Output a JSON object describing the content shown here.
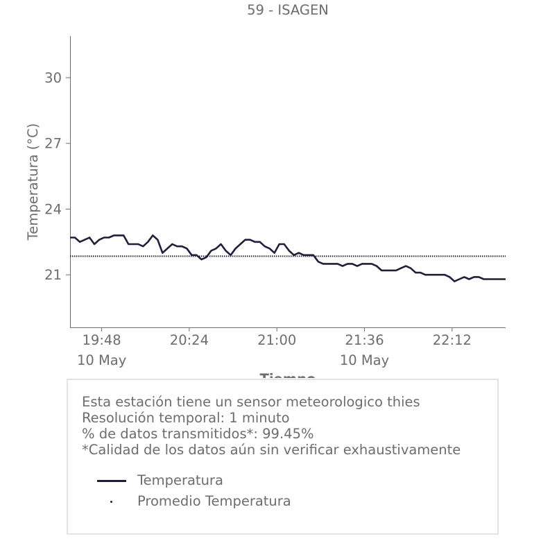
{
  "chart_data": {
    "type": "line",
    "title": "59 - ISAGEN",
    "xlabel": "Tiempo",
    "ylabel": "Temperatura (°C)",
    "x_start": "19:35",
    "x_end": "22:34",
    "x_ticks": [
      "19:48",
      "20:24",
      "21:00",
      "21:36",
      "22:12"
    ],
    "x_sublabels": [
      "10 May",
      "",
      "",
      "10 May",
      ""
    ],
    "y_ticks": [
      21,
      24,
      27,
      30
    ],
    "ylim": [
      18.6,
      31.9
    ],
    "grid": false,
    "series": [
      {
        "name": "Temperatura",
        "color": "#1d1f3d",
        "style": "solid",
        "x": [
          "19:35",
          "19:37",
          "19:39",
          "19:41",
          "19:43",
          "19:45",
          "19:47",
          "19:49",
          "19:51",
          "19:53",
          "19:55",
          "19:57",
          "19:59",
          "20:01",
          "20:03",
          "20:05",
          "20:07",
          "20:09",
          "20:11",
          "20:13",
          "20:15",
          "20:17",
          "20:19",
          "20:21",
          "20:23",
          "20:25",
          "20:27",
          "20:29",
          "20:31",
          "20:33",
          "20:35",
          "20:37",
          "20:39",
          "20:41",
          "20:43",
          "20:45",
          "20:47",
          "20:49",
          "20:51",
          "20:53",
          "20:55",
          "20:57",
          "20:59",
          "21:01",
          "21:03",
          "21:05",
          "21:07",
          "21:09",
          "21:11",
          "21:13",
          "21:15",
          "21:17",
          "21:19",
          "21:21",
          "21:23",
          "21:25",
          "21:27",
          "21:29",
          "21:31",
          "21:33",
          "21:35",
          "21:37",
          "21:39",
          "21:41",
          "21:43",
          "21:45",
          "21:47",
          "21:49",
          "21:51",
          "21:53",
          "21:55",
          "21:57",
          "21:59",
          "22:01",
          "22:03",
          "22:05",
          "22:07",
          "22:09",
          "22:11",
          "22:13",
          "22:15",
          "22:17",
          "22:19",
          "22:21",
          "22:23",
          "22:25",
          "22:27",
          "22:29",
          "22:31",
          "22:34"
        ],
        "values": [
          22.7,
          22.7,
          22.5,
          22.6,
          22.7,
          22.4,
          22.6,
          22.7,
          22.7,
          22.8,
          22.8,
          22.8,
          22.4,
          22.4,
          22.4,
          22.3,
          22.5,
          22.8,
          22.6,
          22.0,
          22.2,
          22.4,
          22.3,
          22.3,
          22.2,
          21.9,
          21.9,
          21.7,
          21.8,
          22.1,
          22.2,
          22.4,
          22.1,
          21.9,
          22.2,
          22.4,
          22.6,
          22.6,
          22.5,
          22.5,
          22.3,
          22.2,
          22.0,
          22.4,
          22.4,
          22.1,
          21.9,
          22.0,
          21.9,
          21.9,
          21.9,
          21.6,
          21.5,
          21.5,
          21.5,
          21.5,
          21.4,
          21.5,
          21.5,
          21.4,
          21.5,
          21.5,
          21.5,
          21.4,
          21.2,
          21.2,
          21.2,
          21.2,
          21.3,
          21.4,
          21.3,
          21.1,
          21.1,
          21.0,
          21.0,
          21.0,
          21.0,
          21.0,
          20.9,
          20.7,
          20.8,
          20.9,
          20.8,
          20.9,
          20.9,
          20.8,
          20.8,
          20.8,
          20.8,
          20.8
        ]
      },
      {
        "name": "Promedio Temperatura",
        "color": "#1d1f3d",
        "style": "dotted",
        "x": [
          "19:35",
          "22:34"
        ],
        "values": [
          21.85,
          21.85
        ]
      }
    ]
  },
  "info": {
    "line1": "Esta estación tiene un sensor meteorologico thies",
    "line2": "Resolución temporal: 1 minuto",
    "line3": "% de datos transmitidos*: 99.45%",
    "line4": "*Calidad de los datos aún sin verificar exhaustivamente"
  },
  "legend": [
    {
      "label": "Temperatura",
      "marker": "line"
    },
    {
      "label": "Promedio Temperatura",
      "marker": "dot"
    }
  ]
}
